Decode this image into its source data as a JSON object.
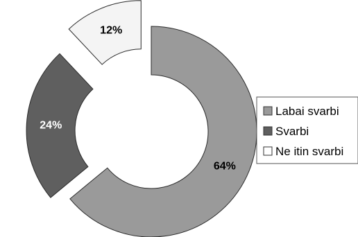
{
  "chart_data": {
    "type": "pie",
    "style": "exploded donut",
    "slices": [
      {
        "label": "Labai svarbi",
        "value": 64,
        "display": "64%",
        "color": "#9a9a9a",
        "label_color": "#000000"
      },
      {
        "label": "Svarbi",
        "value": 24,
        "display": "24%",
        "color": "#5f5f5f",
        "label_color": "#ffffff"
      },
      {
        "label": "Ne itin svarbi",
        "value": 12,
        "display": "12%",
        "color": "#f4f4f4",
        "label_color": "#000000"
      }
    ],
    "legend_position": "right"
  }
}
